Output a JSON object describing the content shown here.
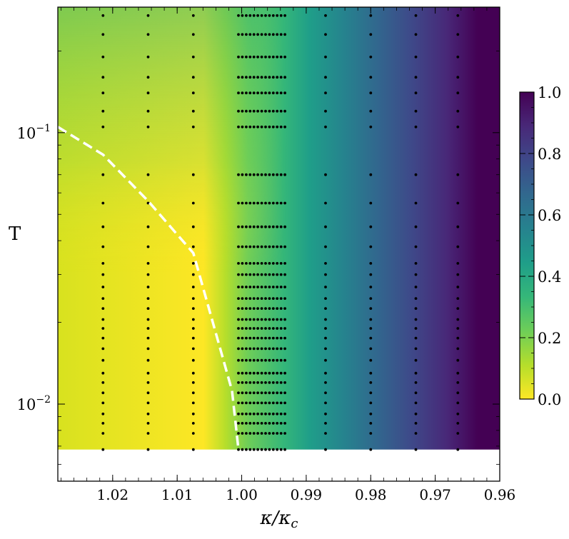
{
  "chart_data": {
    "type": "heatmap",
    "title": "",
    "xlabel": "κ/κc",
    "ylabel": "T",
    "x_axis": {
      "range": [
        1.0285,
        0.96
      ],
      "reversed": true,
      "scale": "linear",
      "ticks": [
        {
          "value": 1.02,
          "label": "1.02"
        },
        {
          "value": 1.01,
          "label": "1.01"
        },
        {
          "value": 1.0,
          "label": "1.00"
        },
        {
          "value": 0.99,
          "label": "0.99"
        },
        {
          "value": 0.98,
          "label": "0.98"
        },
        {
          "value": 0.97,
          "label": "0.97"
        },
        {
          "value": 0.96,
          "label": "0.96"
        }
      ]
    },
    "y_axis": {
      "range": [
        0.0052,
        0.29
      ],
      "scale": "log",
      "ticks": [
        {
          "value": 0.01,
          "base": "10",
          "exp": "−2"
        },
        {
          "value": 0.1,
          "base": "10",
          "exp": "−1"
        }
      ]
    },
    "colorbar": {
      "range": [
        0.0,
        1.0
      ],
      "colormap": "viridis_r",
      "ticks": [
        "0.0",
        "0.2",
        "0.4",
        "0.6",
        "0.8",
        "1.0"
      ]
    },
    "data_extent": {
      "T_min": 0.0068,
      "T_max": 0.29
    },
    "sample_rows_T": [
      0.0068,
      0.0078,
      0.0085,
      0.0092,
      0.0101,
      0.011,
      0.012,
      0.013,
      0.0145,
      0.016,
      0.0175,
      0.019,
      0.0205,
      0.0225,
      0.0245,
      0.027,
      0.03,
      0.033,
      0.038,
      0.045,
      0.055,
      0.07,
      0.105,
      0.12,
      0.14,
      0.16,
      0.19,
      0.23,
      0.27
    ],
    "sample_columns_kappa": [
      1.0215,
      1.0145,
      1.0075,
      1.0005,
      0.9999,
      0.9993,
      0.9987,
      0.9981,
      0.9975,
      0.9969,
      0.9963,
      0.9957,
      0.9951,
      0.9945,
      0.9939,
      0.9933,
      0.987,
      0.98,
      0.973,
      0.9665
    ],
    "dense_columns_kappa": [
      1.0005,
      0.9999,
      0.9993,
      0.9987,
      0.9981,
      0.9975,
      0.9969,
      0.9963,
      0.9957,
      0.9951,
      0.9945,
      0.9939,
      0.9933
    ],
    "boundary_line": {
      "style": "dashed",
      "color": "#ffffff",
      "points": [
        {
          "kappa": 1.0285,
          "T": 0.105
        },
        {
          "kappa": 1.0215,
          "T": 0.083
        },
        {
          "kappa": 1.0145,
          "T": 0.056
        },
        {
          "kappa": 1.0075,
          "T": 0.036
        },
        {
          "kappa": 1.0015,
          "T": 0.0112
        },
        {
          "kappa": 1.0005,
          "T": 0.0068
        }
      ]
    }
  }
}
